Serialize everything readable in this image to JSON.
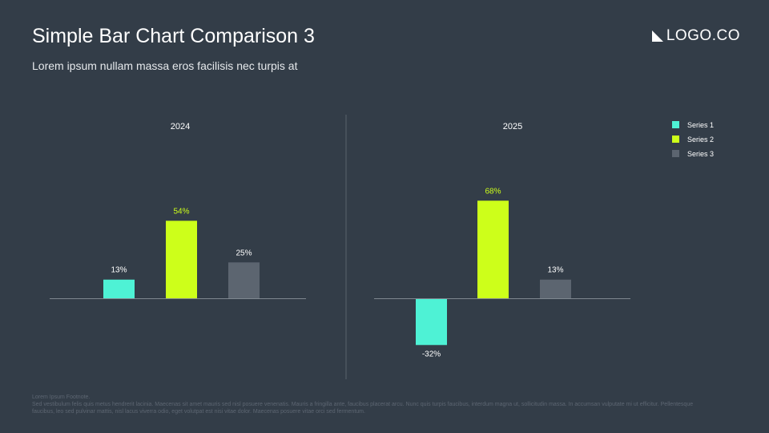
{
  "header": {
    "title": "Simple Bar Chart Comparison 3",
    "subtitle": "Lorem ipsum nullam massa eros facilisis nec turpis at"
  },
  "logo": {
    "text": "LOGO.CO"
  },
  "colors": {
    "background": "#333d48",
    "series_1": "#4ef2d5",
    "series_2": "#cdff1a",
    "series_3": "#5c6570",
    "axis": "#7f8790",
    "divider": "#5a636d"
  },
  "chart_data": [
    {
      "type": "bar",
      "title": "2024",
      "categories": [
        "Series 1",
        "Series 2",
        "Series 3"
      ],
      "values": [
        13,
        54,
        25
      ],
      "data_labels": [
        "13%",
        "54%",
        "25%"
      ],
      "unit": "%",
      "grid": false
    },
    {
      "type": "bar",
      "title": "2025",
      "categories": [
        "Series 1",
        "Series 2",
        "Series 3"
      ],
      "values": [
        -32,
        68,
        13
      ],
      "data_labels": [
        "-32%",
        "68%",
        "13%"
      ],
      "unit": "%",
      "grid": false
    }
  ],
  "legend": {
    "position": "right",
    "items": [
      {
        "label": "Series 1",
        "color": "#4ef2d5"
      },
      {
        "label": "Series 2",
        "color": "#cdff1a"
      },
      {
        "label": "Series 3",
        "color": "#5c6570"
      }
    ]
  },
  "footnote": {
    "heading": "Lorem Ipsum Footnote.",
    "body": "Sed vestibulum felis quis metus hendrerit lacinia. Maecenas sit amet mauris sed nisl posuere venenatis. Mauris a fringilla ante, faucibus placerat arcu. Nunc quis turpis faucibus, interdum magna ut, sollicitudin massa. In accumsan vulputate mi ut efficitur. Pellentesque faucibus, leo sed pulvinar mattis, nisl lacus viverra odio, eget volutpat est nisi vitae dolor. Maecenas posuere vitae orci sed fermentum."
  }
}
